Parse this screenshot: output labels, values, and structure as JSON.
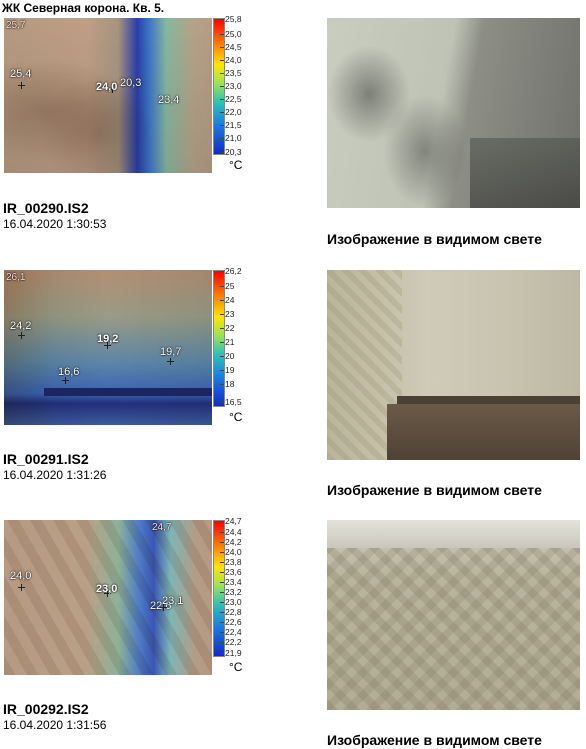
{
  "document": {
    "title": "ЖК Северная корона. Кв. 5."
  },
  "entries": [
    {
      "file": "IR_00290.IS2",
      "datetime": "16.04.2020 1:30:53",
      "scale": [
        "25,8",
        "25,0",
        "24,5",
        "24,0",
        "23,5",
        "23,0",
        "22,5",
        "22,0",
        "21,5",
        "21,0",
        "20,3"
      ],
      "unit": "°C",
      "max_marker": "25,7",
      "spots": [
        "25,4",
        "24,0",
        "20,3",
        "23,4"
      ],
      "caption": "Изображение в видимом свете"
    },
    {
      "file": "IR_00291.IS2",
      "datetime": "16.04.2020 1:31:26",
      "scale": [
        "26,2",
        "25",
        "24",
        "23",
        "22",
        "21",
        "20",
        "19",
        "18",
        "16,5"
      ],
      "unit": "°C",
      "max_marker": "26,1",
      "spots": [
        "24,2",
        "19,2",
        "19,7",
        "16,6"
      ],
      "caption": "Изображение в видимом свете"
    },
    {
      "file": "IR_00292.IS2",
      "datetime": "16.04.2020 1:31:56",
      "scale": [
        "24,7",
        "24,4",
        "24,2",
        "24,0",
        "23,8",
        "23,6",
        "23,4",
        "23,2",
        "23,0",
        "22,8",
        "22,6",
        "22,4",
        "22,2",
        "21,9"
      ],
      "unit": "°C",
      "max_marker": "24,7",
      "spots": [
        "24,0",
        "23,0",
        "22,6",
        "23,1"
      ],
      "caption": "Изображение в видимом свете"
    }
  ]
}
